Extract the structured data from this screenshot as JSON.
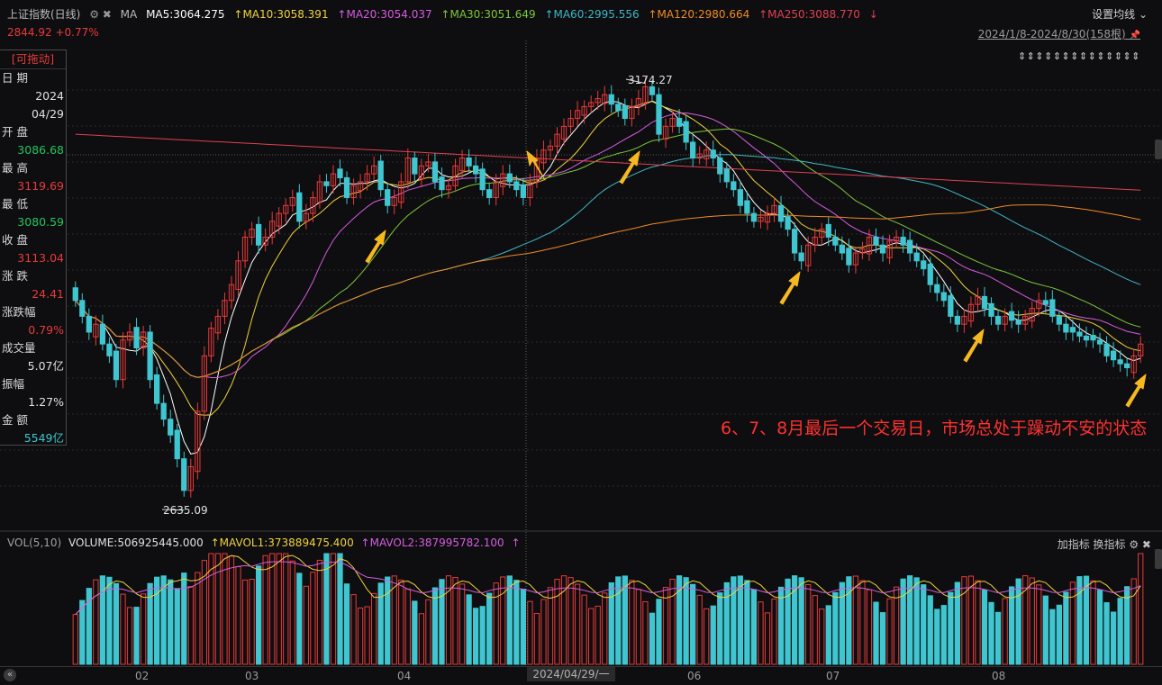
{
  "header": {
    "title": "上证指数(日线)",
    "settings_icons": "⚙ ✖",
    "ma_label": "MA",
    "ma5": "MA5:3064.275",
    "ma10": "↑MA10:3058.391",
    "ma20": "↑MA20:3054.037",
    "ma30": "↑MA30:3051.649",
    "ma60": "↑MA60:2995.556",
    "ma120": "↑MA120:2980.664",
    "ma250": "↑MA250:3088.770",
    "ma250_arrow": "↓",
    "settings_button": "设置均线 ⌄",
    "price": "2844.92 +0.77%",
    "range": "2024/1/8-2024/8/30(158根)",
    "pin_icon": "📌",
    "arrows": "⇕⇕⇕⇕⇕⇕⇕⇕⇕⇕⇕⇕⇕⇕"
  },
  "info_panel": {
    "header": "[可拖动]",
    "rows": [
      {
        "label": "日  期",
        "value": "2024"
      },
      {
        "label": "",
        "value": "04/29"
      },
      {
        "label": "开  盘",
        "value": "3086.68"
      },
      {
        "label": "最  高",
        "value": "3119.69"
      },
      {
        "label": "最  低",
        "value": "3080.59"
      },
      {
        "label": "收  盘",
        "value": "3113.04"
      },
      {
        "label": "涨  跌",
        "value": "24.41"
      },
      {
        "label": "涨跌幅",
        "value": "0.79%"
      },
      {
        "label": "成交量",
        "value": "5.07亿"
      },
      {
        "label": "振幅",
        "value": "1.27%"
      },
      {
        "label": "金  额",
        "value": "5549亿"
      }
    ],
    "colors": [
      "white",
      "white",
      "green",
      "red",
      "green",
      "red",
      "red",
      "red",
      "white",
      "white",
      "cyan"
    ]
  },
  "annotation": "6、7、8月最后一个交易日，市场总处于躁动不安的状态",
  "volume_header": {
    "vol": "VOL(5,10)",
    "volume": "VOLUME:506925445.000",
    "mavol1": "↑MAVOL1:373889475.400",
    "mavol2": "↑MAVOL2:387995782.100",
    "mavol2_arrow": "↑",
    "tools": "加指标 换指标 ⚙ ✖"
  },
  "xaxis": {
    "labels": [
      "02",
      "03",
      "04",
      "06",
      "07",
      "08"
    ],
    "crosshair": "2024/04/29/一"
  },
  "colors": {
    "up": "#e83a3a",
    "down": "#3fc6d0",
    "ma5": "#ffffff",
    "ma10": "#f0d23c",
    "ma20": "#d65ce0",
    "ma30": "#7dc63a",
    "ma60": "#3fb6c6",
    "ma120": "#f08a24",
    "ma250": "#e04050",
    "arrow": "#f5b820"
  },
  "chart_data": {
    "type": "candlestick",
    "title": "上证指数(日线)",
    "period": "2024/1/8-2024/8/30",
    "bars": 158,
    "high_point": {
      "label": "3174.27",
      "value": 3174.27
    },
    "low_point": {
      "label": "2635.09",
      "value": 2635.09
    },
    "ylim": [
      2620,
      3200
    ],
    "closes": [
      2900,
      2880,
      2860,
      2870,
      2845,
      2830,
      2800,
      2850,
      2860,
      2840,
      2860,
      2800,
      2770,
      2750,
      2730,
      2700,
      2660,
      2690,
      2760,
      2830,
      2865,
      2880,
      2900,
      2920,
      2950,
      2980,
      2990,
      2970,
      2980,
      3000,
      3010,
      3020,
      3030,
      3000,
      3010,
      3030,
      3050,
      3045,
      3060,
      3055,
      3030,
      3045,
      3050,
      3060,
      3070,
      3040,
      3020,
      3030,
      3050,
      3080,
      3060,
      3070,
      3075,
      3050,
      3040,
      3045,
      3070,
      3080,
      3070,
      3060,
      3040,
      3030,
      3050,
      3060,
      3050,
      3040,
      3030,
      3050,
      3080,
      3090,
      3095,
      3110,
      3120,
      3130,
      3140,
      3145,
      3150,
      3155,
      3160,
      3148,
      3140,
      3130,
      3145,
      3155,
      3170,
      3160,
      3110,
      3120,
      3130,
      3120,
      3100,
      3080,
      3085,
      3090,
      3080,
      3060,
      3050,
      3040,
      3020,
      3010,
      3000,
      3005,
      3010,
      3020,
      3000,
      2990,
      2960,
      2950,
      2970,
      2980,
      2990,
      2980,
      2970,
      2960,
      2945,
      2960,
      2965,
      2980,
      2970,
      2960,
      2975,
      2980,
      2970,
      2960,
      2950,
      2940,
      2920,
      2910,
      2900,
      2880,
      2870,
      2880,
      2895,
      2905,
      2890,
      2880,
      2870,
      2880,
      2875,
      2870,
      2880,
      2890,
      2900,
      2895,
      2880,
      2870,
      2860,
      2860,
      2855,
      2850,
      2850,
      2845,
      2830,
      2825,
      2820,
      2815,
      2830,
      2844.92
    ],
    "moving_averages": [
      {
        "name": "MA5",
        "value": 3064.275
      },
      {
        "name": "MA10",
        "value": 3058.391
      },
      {
        "name": "MA20",
        "value": 3054.037
      },
      {
        "name": "MA30",
        "value": 3051.649
      },
      {
        "name": "MA60",
        "value": 2995.556
      },
      {
        "name": "MA120",
        "value": 2980.664
      },
      {
        "name": "MA250",
        "value": 3088.77
      }
    ],
    "volume": {
      "current": 506925445.0,
      "mavol1": 373889475.4,
      "mavol2": 387995782.1
    }
  }
}
